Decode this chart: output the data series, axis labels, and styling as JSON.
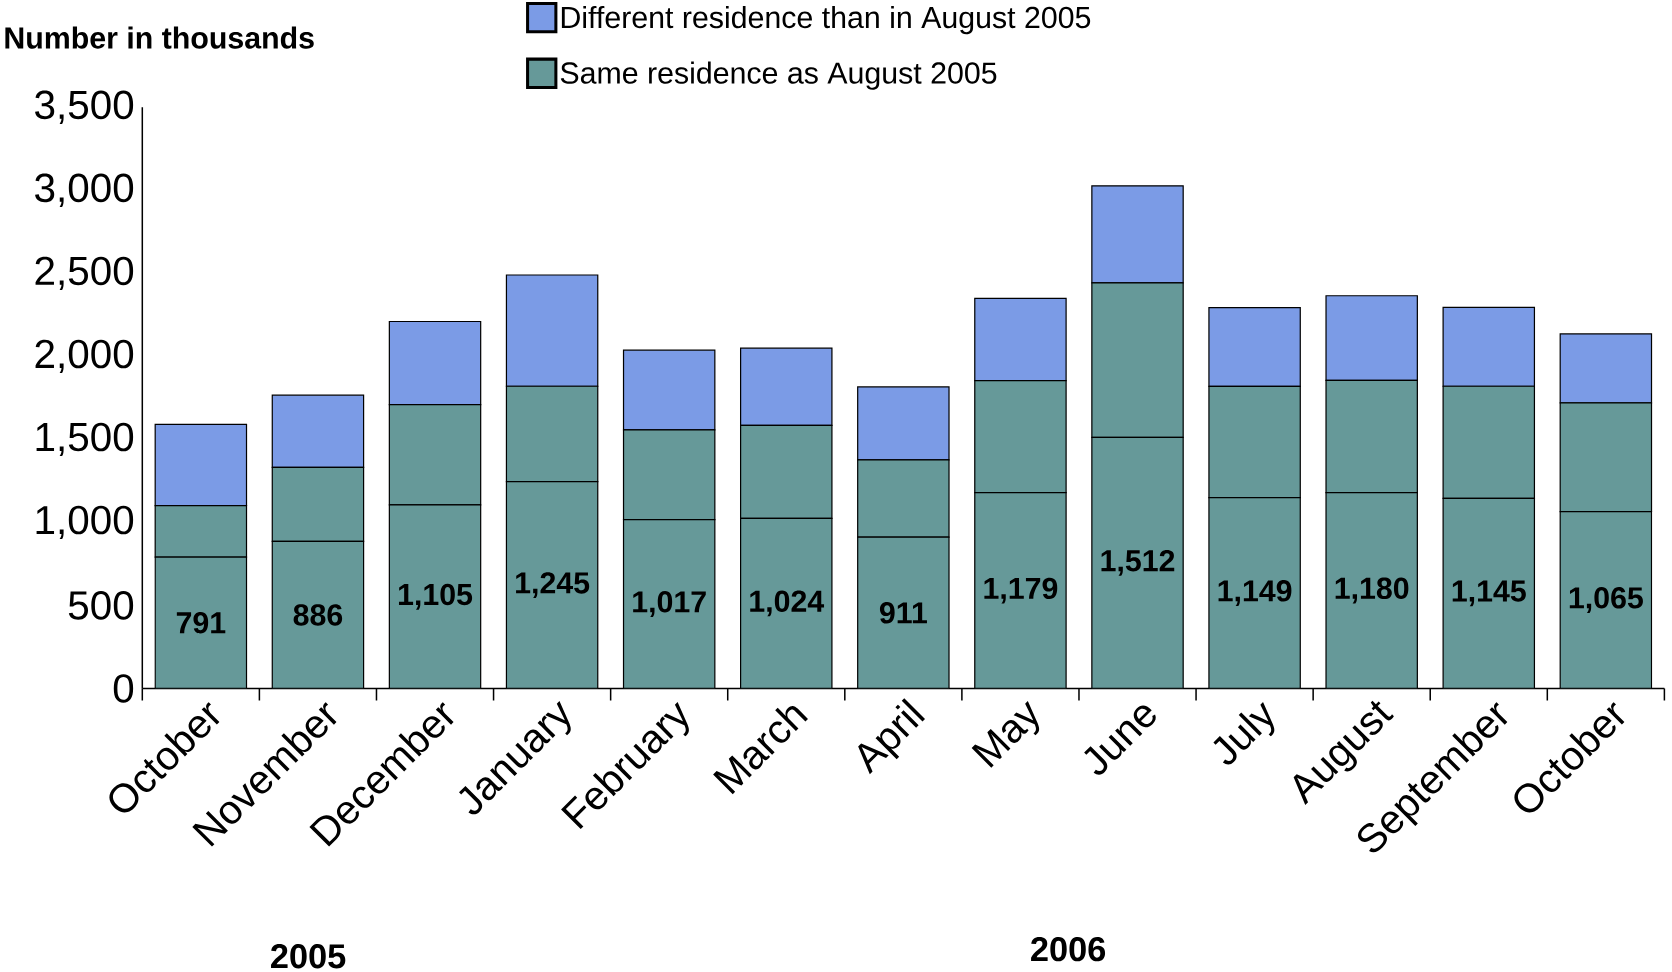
{
  "chart_data": {
    "type": "bar",
    "stacked": true,
    "ylabel": "Number in thousands",
    "categories": [
      "October",
      "November",
      "December",
      "January",
      "February",
      "March",
      "April",
      "May",
      "June",
      "July",
      "August",
      "September",
      "October"
    ],
    "series": [
      {
        "color": "#669999",
        "values": [
          791,
          886,
          1105,
          1245,
          1017,
          1024,
          911,
          1179,
          1512,
          1149,
          1180,
          1145,
          1065
        ],
        "value_labels": [
          "791",
          "886",
          "1,105",
          "1,245",
          "1,017",
          "1,024",
          "911",
          "1,179",
          "1,512",
          "1,149",
          "1,180",
          "1,145",
          "1,065"
        ]
      },
      {
        "name": "Same residence as August 2005",
        "color": "#669999",
        "values": [
          310,
          445,
          605,
          575,
          540,
          560,
          465,
          675,
          930,
          670,
          675,
          675,
          655
        ]
      },
      {
        "name": "Different residence than in August 2005",
        "color": "#7b9be6",
        "values": [
          490,
          435,
          500,
          670,
          480,
          465,
          440,
          495,
          585,
          475,
          510,
          475,
          415
        ]
      }
    ],
    "ylim": [
      0,
      3500
    ],
    "yticks": [
      {
        "value": 0,
        "label": "0"
      },
      {
        "value": 500,
        "label": "500"
      },
      {
        "value": 1000,
        "label": "1,000"
      },
      {
        "value": 1500,
        "label": "1,500"
      },
      {
        "value": 2000,
        "label": "2,000"
      },
      {
        "value": 2500,
        "label": "2,500"
      },
      {
        "value": 3000,
        "label": "3,000"
      },
      {
        "value": 3500,
        "label": "3,500"
      }
    ],
    "legend": "top",
    "annotations": [
      "2005",
      "2006"
    ]
  }
}
